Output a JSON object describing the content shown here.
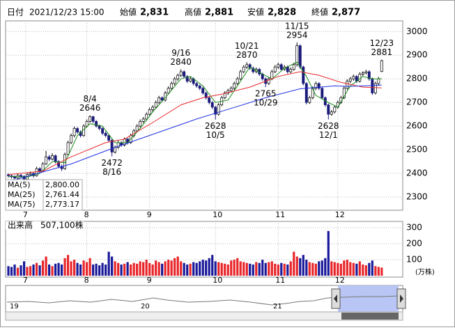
{
  "header": {
    "date_label": "日付",
    "date": "2021/12/23 15:00",
    "fields": [
      {
        "label": "始値",
        "value": "2,831",
        "color": "#000000"
      },
      {
        "label": "高値",
        "value": "2,881",
        "color": "#e8262a"
      },
      {
        "label": "安値",
        "value": "2,828",
        "color": "#1a8c1a"
      },
      {
        "label": "終値",
        "value": "2,877",
        "color": "#000000"
      }
    ]
  },
  "chart_data": {
    "type": "candlestick",
    "xlim": [
      -0.9,
      125.7
    ],
    "xticks": [
      {
        "value": 5.5,
        "label": "7"
      },
      {
        "value": 25,
        "label": "8"
      },
      {
        "value": 45,
        "label": "9"
      },
      {
        "value": 66,
        "label": "10"
      },
      {
        "value": 86,
        "label": "11"
      },
      {
        "value": 105,
        "label": "12"
      }
    ],
    "ylim": [
      2250,
      3045
    ],
    "yticks": [
      2300,
      2400,
      2500,
      2600,
      2700,
      2800,
      2900,
      3000
    ],
    "grid": true,
    "up_color": "#ffffff",
    "down_color": "#1a1a7a",
    "ohlc": [
      [
        2395,
        2400,
        2382,
        2390
      ],
      [
        2390,
        2396,
        2378,
        2385
      ],
      [
        2385,
        2392,
        2372,
        2380
      ],
      [
        2380,
        2398,
        2375,
        2392
      ],
      [
        2392,
        2398,
        2382,
        2388
      ],
      [
        2388,
        2392,
        2368,
        2375
      ],
      [
        2375,
        2402,
        2370,
        2395
      ],
      [
        2395,
        2408,
        2390,
        2400
      ],
      [
        2400,
        2405,
        2382,
        2390
      ],
      [
        2390,
        2428,
        2386,
        2420
      ],
      [
        2420,
        2426,
        2402,
        2410
      ],
      [
        2410,
        2448,
        2405,
        2440
      ],
      [
        2440,
        2495,
        2436,
        2470
      ],
      [
        2470,
        2478,
        2452,
        2460
      ],
      [
        2460,
        2485,
        2455,
        2475
      ],
      [
        2475,
        2480,
        2442,
        2450
      ],
      [
        2450,
        2456,
        2422,
        2430
      ],
      [
        2430,
        2438,
        2410,
        2420
      ],
      [
        2420,
        2488,
        2415,
        2480
      ],
      [
        2480,
        2538,
        2476,
        2530
      ],
      [
        2530,
        2568,
        2524,
        2560
      ],
      [
        2560,
        2598,
        2552,
        2590
      ],
      [
        2590,
        2596,
        2568,
        2575
      ],
      [
        2575,
        2582,
        2552,
        2560
      ],
      [
        2560,
        2608,
        2555,
        2600
      ],
      [
        2600,
        2628,
        2594,
        2620
      ],
      [
        2620,
        2646,
        2614,
        2640
      ],
      [
        2640,
        2644,
        2612,
        2620
      ],
      [
        2620,
        2626,
        2594,
        2600
      ],
      [
        2600,
        2606,
        2582,
        2590
      ],
      [
        2590,
        2596,
        2562,
        2570
      ],
      [
        2570,
        2578,
        2552,
        2560
      ],
      [
        2560,
        2566,
        2532,
        2540
      ],
      [
        2540,
        2546,
        2472,
        2490
      ],
      [
        2490,
        2518,
        2484,
        2510
      ],
      [
        2510,
        2538,
        2504,
        2530
      ],
      [
        2530,
        2536,
        2512,
        2520
      ],
      [
        2520,
        2552,
        2514,
        2545
      ],
      [
        2545,
        2550,
        2522,
        2530
      ],
      [
        2530,
        2568,
        2525,
        2560
      ],
      [
        2560,
        2588,
        2552,
        2580
      ],
      [
        2580,
        2608,
        2574,
        2600
      ],
      [
        2600,
        2628,
        2594,
        2620
      ],
      [
        2620,
        2638,
        2612,
        2630
      ],
      [
        2630,
        2658,
        2622,
        2650
      ],
      [
        2650,
        2678,
        2644,
        2670
      ],
      [
        2670,
        2688,
        2660,
        2680
      ],
      [
        2680,
        2708,
        2674,
        2700
      ],
      [
        2700,
        2728,
        2694,
        2720
      ],
      [
        2720,
        2726,
        2702,
        2710
      ],
      [
        2710,
        2748,
        2704,
        2740
      ],
      [
        2740,
        2768,
        2734,
        2760
      ],
      [
        2760,
        2788,
        2752,
        2780
      ],
      [
        2780,
        2808,
        2772,
        2800
      ],
      [
        2800,
        2822,
        2792,
        2815
      ],
      [
        2815,
        2840,
        2808,
        2830
      ],
      [
        2830,
        2836,
        2802,
        2810
      ],
      [
        2810,
        2816,
        2782,
        2790
      ],
      [
        2790,
        2808,
        2784,
        2800
      ],
      [
        2800,
        2806,
        2772,
        2780
      ],
      [
        2780,
        2786,
        2762,
        2770
      ],
      [
        2770,
        2776,
        2752,
        2760
      ],
      [
        2760,
        2766,
        2732,
        2740
      ],
      [
        2740,
        2746,
        2712,
        2720
      ],
      [
        2720,
        2726,
        2692,
        2700
      ],
      [
        2700,
        2706,
        2672,
        2680
      ],
      [
        2680,
        2686,
        2628,
        2650
      ],
      [
        2650,
        2698,
        2644,
        2690
      ],
      [
        2690,
        2728,
        2684,
        2720
      ],
      [
        2720,
        2748,
        2714,
        2740
      ],
      [
        2740,
        2758,
        2732,
        2750
      ],
      [
        2750,
        2768,
        2742,
        2760
      ],
      [
        2760,
        2788,
        2752,
        2780
      ],
      [
        2780,
        2808,
        2774,
        2800
      ],
      [
        2800,
        2838,
        2794,
        2830
      ],
      [
        2830,
        2858,
        2824,
        2850
      ],
      [
        2850,
        2870,
        2842,
        2860
      ],
      [
        2860,
        2866,
        2838,
        2845
      ],
      [
        2845,
        2852,
        2822,
        2830
      ],
      [
        2830,
        2848,
        2824,
        2840
      ],
      [
        2840,
        2846,
        2812,
        2820
      ],
      [
        2820,
        2826,
        2792,
        2800
      ],
      [
        2800,
        2806,
        2765,
        2780
      ],
      [
        2780,
        2808,
        2774,
        2800
      ],
      [
        2800,
        2838,
        2794,
        2830
      ],
      [
        2830,
        2858,
        2824,
        2850
      ],
      [
        2850,
        2868,
        2842,
        2860
      ],
      [
        2860,
        2866,
        2832,
        2840
      ],
      [
        2840,
        2858,
        2834,
        2850
      ],
      [
        2850,
        2856,
        2822,
        2830
      ],
      [
        2830,
        2848,
        2824,
        2840
      ],
      [
        2840,
        2868,
        2834,
        2860
      ],
      [
        2860,
        2954,
        2852,
        2940
      ],
      [
        2940,
        2946,
        2842,
        2850
      ],
      [
        2850,
        2856,
        2772,
        2780
      ],
      [
        2780,
        2786,
        2692,
        2700
      ],
      [
        2700,
        2728,
        2694,
        2720
      ],
      [
        2720,
        2768,
        2714,
        2760
      ],
      [
        2760,
        2788,
        2752,
        2780
      ],
      [
        2780,
        2786,
        2752,
        2760
      ],
      [
        2760,
        2766,
        2712,
        2720
      ],
      [
        2720,
        2726,
        2682,
        2690
      ],
      [
        2690,
        2696,
        2628,
        2650
      ],
      [
        2650,
        2668,
        2644,
        2660
      ],
      [
        2660,
        2688,
        2654,
        2680
      ],
      [
        2680,
        2708,
        2674,
        2700
      ],
      [
        2700,
        2728,
        2694,
        2720
      ],
      [
        2720,
        2768,
        2714,
        2760
      ],
      [
        2760,
        2798,
        2754,
        2790
      ],
      [
        2790,
        2808,
        2782,
        2800
      ],
      [
        2800,
        2818,
        2792,
        2810
      ],
      [
        2810,
        2816,
        2782,
        2790
      ],
      [
        2790,
        2828,
        2784,
        2820
      ],
      [
        2820,
        2832,
        2812,
        2825
      ],
      [
        2825,
        2838,
        2818,
        2830
      ],
      [
        2830,
        2836,
        2792,
        2800
      ],
      [
        2800,
        2806,
        2732,
        2740
      ],
      [
        2740,
        2788,
        2734,
        2780
      ],
      [
        2780,
        2808,
        2774,
        2800
      ],
      [
        2831,
        2881,
        2828,
        2877
      ]
    ],
    "series": [
      {
        "name": "MA(5)",
        "value_label": "2,800.00",
        "color": "#1a8c1a",
        "x": [
          0,
          6,
          10,
          14,
          18,
          22,
          26,
          30,
          34,
          38,
          42,
          46,
          50,
          55,
          58,
          62,
          66,
          70,
          74,
          77,
          81,
          84,
          88,
          92,
          95,
          98,
          102,
          105,
          109,
          113,
          116,
          119
        ],
        "values": [
          2388,
          2385,
          2400,
          2450,
          2445,
          2560,
          2610,
          2600,
          2530,
          2530,
          2590,
          2660,
          2720,
          2800,
          2810,
          2770,
          2700,
          2710,
          2790,
          2850,
          2820,
          2800,
          2845,
          2870,
          2810,
          2730,
          2700,
          2680,
          2770,
          2810,
          2800,
          2800
        ]
      },
      {
        "name": "MA(25)",
        "value_label": "2,761.44",
        "color": "#e8262a",
        "x": [
          0,
          11,
          20,
          31,
          37,
          46,
          55,
          62,
          68,
          77,
          86,
          93,
          99,
          106,
          113,
          119
        ],
        "values": [
          2395,
          2410,
          2470,
          2530,
          2545,
          2615,
          2690,
          2720,
          2735,
          2765,
          2810,
          2830,
          2815,
          2785,
          2765,
          2761.44
        ]
      },
      {
        "name": "MA(75)",
        "value_label": "2,773.17",
        "color": "#1f2fe0",
        "x": [
          0,
          20,
          33,
          46,
          60,
          71,
          82,
          93,
          104,
          109,
          119
        ],
        "values": [
          2365,
          2440,
          2505,
          2565,
          2630,
          2675,
          2720,
          2758,
          2770,
          2768,
          2773.17
        ]
      }
    ],
    "annotations": [
      {
        "label": "8/4",
        "value": 2646,
        "x": 26
      },
      {
        "label": "8/16",
        "value": 2472,
        "x": 33
      },
      {
        "label": "9/16",
        "value": 2840,
        "x": 55
      },
      {
        "label": "10/5",
        "value": 2628,
        "x": 66
      },
      {
        "label": "10/21",
        "value": 2870,
        "x": 76
      },
      {
        "label": "10/29",
        "value": 2765,
        "x": 82
      },
      {
        "label": "11/15",
        "value": 2954,
        "x": 92
      },
      {
        "label": "12/1",
        "value": 2628,
        "x": 102
      },
      {
        "label": "12/23",
        "value": 2881,
        "x": 119
      }
    ],
    "volume": {
      "label": "出来高",
      "value_label": "507,100株",
      "unit": "(万株)",
      "up_color": "#e8262a",
      "down_color": "#1a1a9a",
      "ylim": [
        0,
        340
      ],
      "yticks": [
        100,
        200,
        300
      ],
      "values": [
        60,
        55,
        70,
        50,
        65,
        90,
        55,
        60,
        70,
        80,
        65,
        95,
        120,
        70,
        60,
        75,
        80,
        70,
        110,
        130,
        90,
        100,
        80,
        70,
        95,
        85,
        110,
        70,
        75,
        65,
        80,
        70,
        150,
        120,
        90,
        80,
        70,
        75,
        85,
        70,
        80,
        75,
        90,
        85,
        100,
        80,
        70,
        95,
        85,
        75,
        90,
        100,
        95,
        110,
        120,
        90,
        80,
        70,
        75,
        85,
        80,
        90,
        100,
        95,
        110,
        130,
        90,
        85,
        80,
        75,
        70,
        95,
        100,
        110,
        90,
        85,
        80,
        75,
        70,
        85,
        80,
        100,
        80,
        85,
        90,
        75,
        70,
        80,
        75,
        70,
        90,
        150,
        120,
        110,
        130,
        100,
        85,
        80,
        75,
        90,
        95,
        110,
        280,
        90,
        85,
        80,
        75,
        95,
        100,
        85,
        80,
        75,
        90,
        70,
        65,
        80,
        95,
        60,
        55,
        50.71
      ]
    }
  },
  "navigator": {
    "labels": [
      "19",
      "20",
      "21"
    ]
  }
}
